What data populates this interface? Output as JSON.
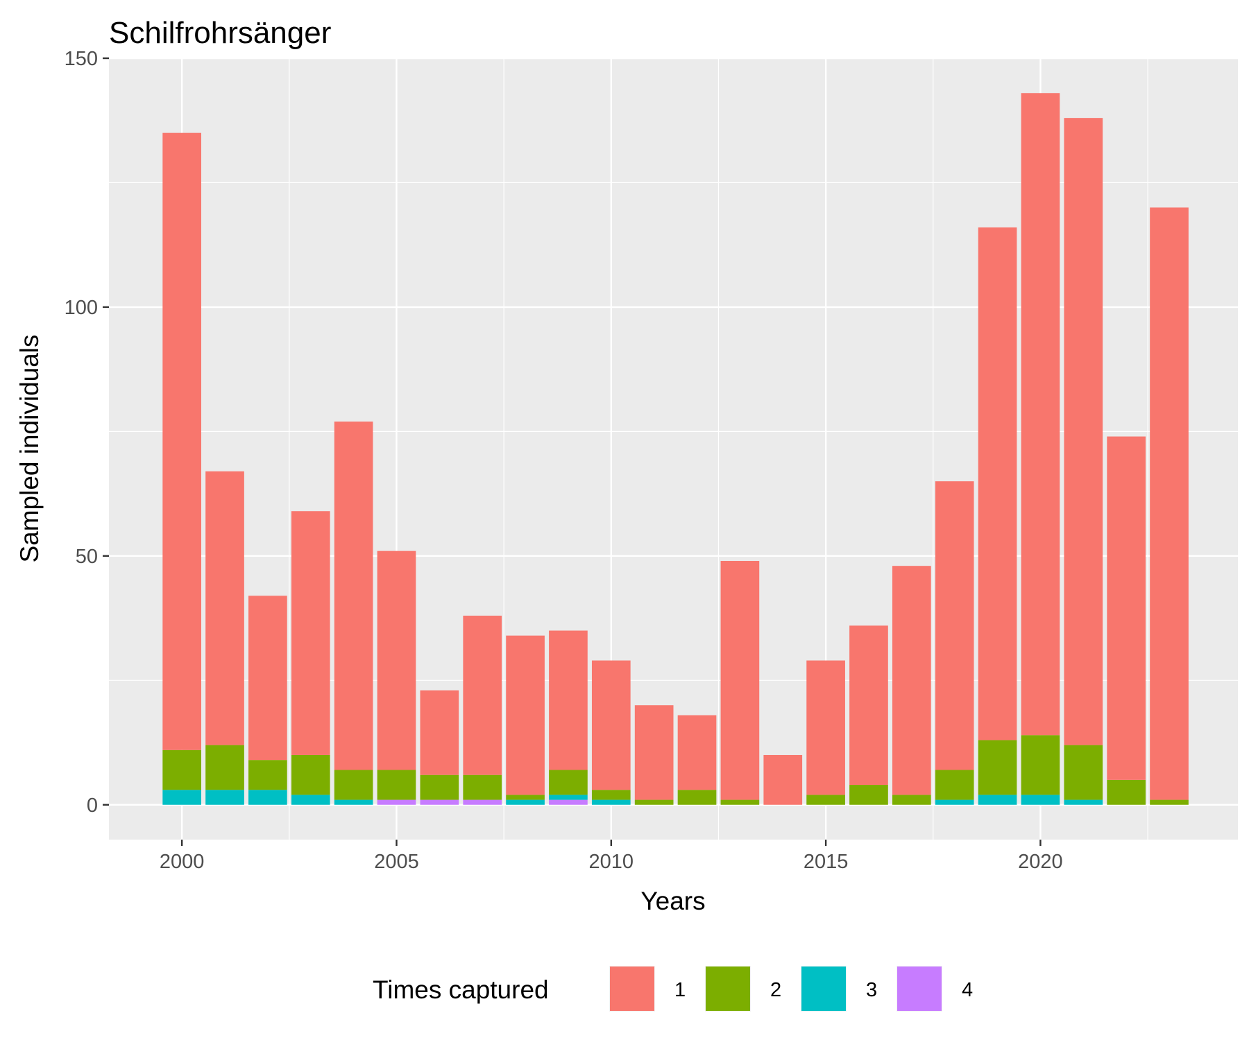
{
  "chart_data": {
    "type": "bar",
    "stacked": true,
    "title": "Schilfrohrsänger",
    "xlabel": "Years",
    "ylabel": "Sampled individuals",
    "x": [
      2000,
      2001,
      2002,
      2003,
      2004,
      2005,
      2006,
      2007,
      2008,
      2009,
      2010,
      2011,
      2012,
      2013,
      2014,
      2015,
      2016,
      2017,
      2018,
      2019,
      2020,
      2021,
      2022,
      2023
    ],
    "xlim": [
      1998.3,
      2024.6
    ],
    "ylim": [
      -7,
      150
    ],
    "x_ticks": [
      "2000",
      "2005",
      "2010",
      "2015",
      "2020"
    ],
    "x_tick_values": [
      2000,
      2005,
      2010,
      2015,
      2020
    ],
    "y_ticks": [
      "0",
      "50",
      "100",
      "150"
    ],
    "y_tick_values": [
      0,
      50,
      100,
      150
    ],
    "grid": true,
    "legend": {
      "title": "Times captured",
      "position": "bottom"
    },
    "series": [
      {
        "name": "1",
        "color": "#F8766D",
        "values": [
          124,
          55,
          33,
          49,
          70,
          44,
          17,
          32,
          32,
          28,
          26,
          19,
          15,
          48,
          10,
          27,
          32,
          46,
          58,
          103,
          129,
          126,
          69,
          119
        ]
      },
      {
        "name": "2",
        "color": "#7CAE00",
        "values": [
          8,
          9,
          6,
          8,
          6,
          6,
          5,
          5,
          1,
          5,
          2,
          1,
          3,
          1,
          0,
          2,
          4,
          2,
          6,
          11,
          12,
          11,
          5,
          1
        ]
      },
      {
        "name": "3",
        "color": "#00BFC4",
        "values": [
          3,
          3,
          3,
          2,
          1,
          0,
          0,
          0,
          1,
          1,
          1,
          0,
          0,
          0,
          0,
          0,
          0,
          0,
          1,
          2,
          2,
          1,
          0,
          0
        ]
      },
      {
        "name": "4",
        "color": "#C77CFF",
        "values": [
          0,
          0,
          0,
          0,
          0,
          1,
          1,
          1,
          0,
          1,
          0,
          0,
          0,
          0,
          0,
          0,
          0,
          0,
          0,
          0,
          0,
          0,
          0,
          0
        ]
      }
    ]
  }
}
